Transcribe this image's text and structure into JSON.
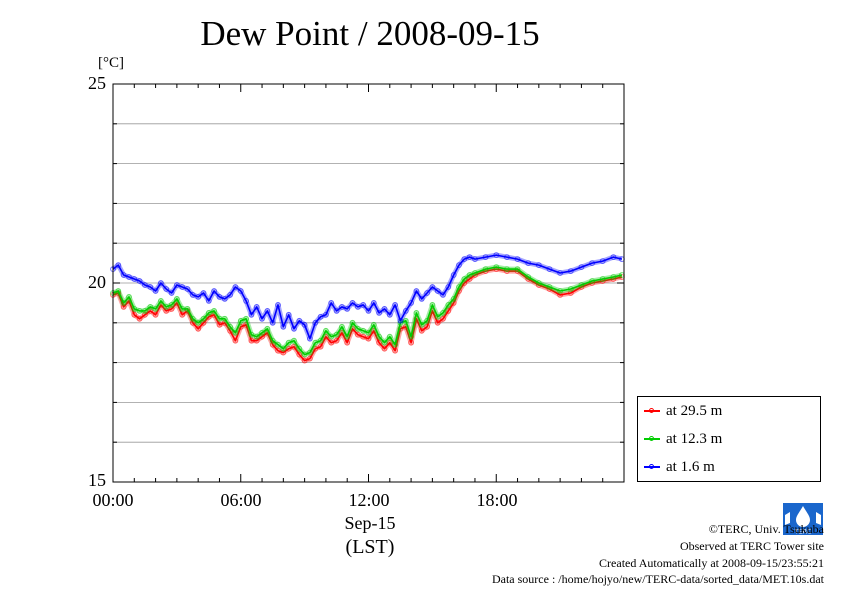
{
  "header": {
    "title": "Dew Point / 2008-09-15",
    "unit": "[°C]"
  },
  "axes": {
    "y_ticks": [
      "25",
      "20",
      "15"
    ],
    "x_ticks": [
      "00:00",
      "06:00",
      "12:00",
      "18:00"
    ],
    "x_date": "Sep-15",
    "x_timezone": "(LST)"
  },
  "legend": {
    "items": [
      {
        "label": "at 29.5 m",
        "color": "#ff0000"
      },
      {
        "label": "at 12.3 m",
        "color": "#00cc00"
      },
      {
        "label": "at 1.6 m",
        "color": "#0000ff"
      }
    ]
  },
  "footer": {
    "copyright": "©TERC, Univ. Tsukuba",
    "site": "Observed at TERC Tower site",
    "created": "Created Automatically at 2008-09-15/23:55:21",
    "source": "Data source : /home/hojyo/new/TERC-data/sorted_data/MET.10s.dat",
    "logo_text": "TERC"
  },
  "colors": {
    "grid": "#999999",
    "at_29_5m": "#ff0000",
    "at_12_3m": "#00cc00",
    "at_1_6m": "#0000ff"
  },
  "chart_data": {
    "type": "line",
    "title": "Dew Point / 2008-09-15",
    "xlabel": "Sep-15 (LST)",
    "ylabel": "[°C]",
    "xlim": [
      0,
      24
    ],
    "ylim": [
      15,
      25
    ],
    "y_grid_step": 1,
    "grid": true,
    "legend_position": "bottom-right (outside)",
    "x": [
      0.0,
      0.25,
      0.5,
      0.75,
      1.0,
      1.25,
      1.5,
      1.75,
      2.0,
      2.25,
      2.5,
      2.75,
      3.0,
      3.25,
      3.5,
      3.75,
      4.0,
      4.25,
      4.5,
      4.75,
      5.0,
      5.25,
      5.5,
      5.75,
      6.0,
      6.25,
      6.5,
      6.75,
      7.0,
      7.25,
      7.5,
      7.75,
      8.0,
      8.25,
      8.5,
      8.75,
      9.0,
      9.25,
      9.5,
      9.75,
      10.0,
      10.25,
      10.5,
      10.75,
      11.0,
      11.25,
      11.5,
      11.75,
      12.0,
      12.25,
      12.5,
      12.75,
      13.0,
      13.25,
      13.5,
      13.75,
      14.0,
      14.25,
      14.5,
      14.75,
      15.0,
      15.25,
      15.5,
      15.75,
      16.0,
      16.25,
      16.5,
      16.75,
      17.0,
      17.5,
      18.0,
      18.5,
      19.0,
      19.5,
      20.0,
      20.5,
      21.0,
      21.5,
      22.0,
      22.5,
      23.0,
      23.5,
      23.9
    ],
    "series": [
      {
        "name": "at 29.5 m",
        "color": "#ff0000",
        "values": [
          19.7,
          19.75,
          19.4,
          19.55,
          19.2,
          19.1,
          19.2,
          19.3,
          19.2,
          19.45,
          19.3,
          19.35,
          19.5,
          19.2,
          19.3,
          19.0,
          18.85,
          19.0,
          19.15,
          19.2,
          18.95,
          19.0,
          18.8,
          18.55,
          18.9,
          18.95,
          18.55,
          18.55,
          18.65,
          18.75,
          18.45,
          18.3,
          18.25,
          18.35,
          18.4,
          18.2,
          18.05,
          18.1,
          18.35,
          18.4,
          18.65,
          18.5,
          18.55,
          18.75,
          18.5,
          18.85,
          18.7,
          18.65,
          18.6,
          18.8,
          18.5,
          18.35,
          18.5,
          18.3,
          18.85,
          18.9,
          18.5,
          19.1,
          18.8,
          18.9,
          19.3,
          19.0,
          19.1,
          19.3,
          19.5,
          19.8,
          20.0,
          20.1,
          20.2,
          20.3,
          20.35,
          20.3,
          20.3,
          20.1,
          19.95,
          19.85,
          19.7,
          19.75,
          19.9,
          20.0,
          20.05,
          20.1,
          20.15
        ]
      },
      {
        "name": "at 12.3 m",
        "color": "#00cc00",
        "values": [
          19.75,
          19.8,
          19.5,
          19.65,
          19.35,
          19.3,
          19.3,
          19.4,
          19.35,
          19.55,
          19.4,
          19.45,
          19.6,
          19.35,
          19.35,
          19.1,
          19.0,
          19.1,
          19.25,
          19.3,
          19.1,
          19.1,
          18.9,
          18.75,
          19.05,
          19.1,
          18.7,
          18.65,
          18.75,
          18.85,
          18.55,
          18.45,
          18.35,
          18.5,
          18.55,
          18.35,
          18.2,
          18.25,
          18.5,
          18.55,
          18.8,
          18.65,
          18.7,
          18.9,
          18.65,
          19.0,
          18.85,
          18.8,
          18.75,
          18.95,
          18.65,
          18.5,
          18.65,
          18.45,
          19.0,
          19.05,
          18.65,
          19.25,
          18.95,
          19.05,
          19.45,
          19.15,
          19.25,
          19.45,
          19.6,
          19.9,
          20.1,
          20.2,
          20.25,
          20.35,
          20.4,
          20.35,
          20.35,
          20.15,
          20.0,
          19.9,
          19.8,
          19.85,
          19.95,
          20.05,
          20.1,
          20.15,
          20.2
        ]
      },
      {
        "name": "at 1.6 m",
        "color": "#0000ff",
        "values": [
          20.35,
          20.45,
          20.2,
          20.15,
          20.1,
          20.05,
          19.95,
          19.9,
          19.8,
          20.0,
          19.85,
          19.75,
          19.95,
          19.9,
          19.85,
          19.7,
          19.65,
          19.75,
          19.55,
          19.8,
          19.65,
          19.6,
          19.7,
          19.9,
          19.8,
          19.55,
          19.2,
          19.4,
          19.1,
          19.3,
          19.0,
          19.45,
          18.9,
          19.2,
          18.85,
          19.05,
          18.95,
          18.6,
          19.0,
          19.15,
          19.2,
          19.5,
          19.3,
          19.4,
          19.35,
          19.5,
          19.4,
          19.45,
          19.3,
          19.5,
          19.25,
          19.35,
          19.2,
          19.45,
          19.05,
          19.3,
          19.5,
          19.8,
          19.6,
          19.75,
          19.9,
          19.8,
          19.7,
          19.9,
          20.2,
          20.45,
          20.6,
          20.65,
          20.6,
          20.65,
          20.7,
          20.65,
          20.6,
          20.5,
          20.45,
          20.35,
          20.25,
          20.3,
          20.4,
          20.5,
          20.55,
          20.65,
          20.6
        ]
      }
    ]
  }
}
